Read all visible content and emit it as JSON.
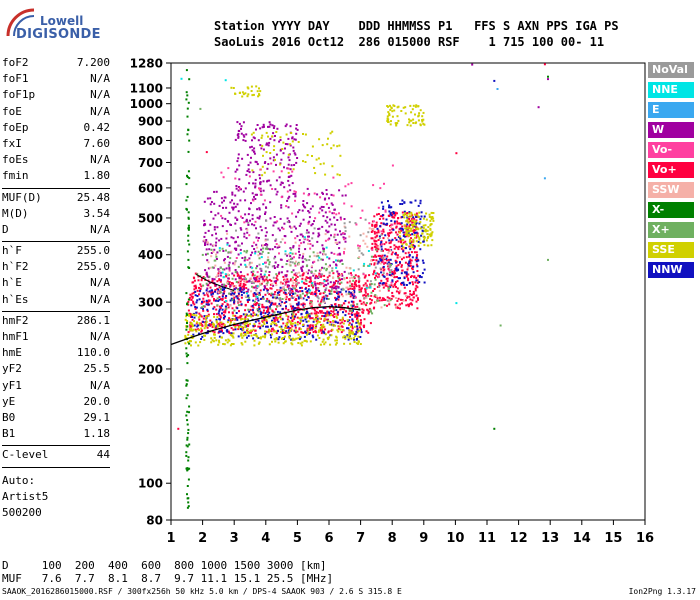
{
  "logo": {
    "line1": "Lowell",
    "line2": "DIGISONDE"
  },
  "header": {
    "row1": "Station YYYY DAY    DDD HHMMSS P1   FFS S AXN PPS IGA PS",
    "row2": "SaoLuis 2016 Oct12  286 015000 RSF    1 715 100 00- 11"
  },
  "params": [
    {
      "name": "foF2",
      "value": "7.200"
    },
    {
      "name": "foF1",
      "value": "N/A"
    },
    {
      "name": "foF1p",
      "value": "N/A"
    },
    {
      "name": "foE",
      "value": "N/A"
    },
    {
      "name": "foEp",
      "value": "0.42"
    },
    {
      "name": "fxI",
      "value": "7.60"
    },
    {
      "name": "foEs",
      "value": "N/A"
    },
    {
      "name": "fmin",
      "value": "1.80"
    },
    {
      "sep": true
    },
    {
      "name": "MUF(D)",
      "value": "25.48"
    },
    {
      "name": "M(D)",
      "value": "3.54"
    },
    {
      "name": "D",
      "value": "N/A"
    },
    {
      "sep": true
    },
    {
      "name": "h`F",
      "value": "255.0"
    },
    {
      "name": "h`F2",
      "value": "255.0"
    },
    {
      "name": "h`E",
      "value": "N/A"
    },
    {
      "name": "h`Es",
      "value": "N/A"
    },
    {
      "sep": true
    },
    {
      "name": "hmF2",
      "value": "286.1"
    },
    {
      "name": "hmF1",
      "value": "N/A"
    },
    {
      "name": "hmE",
      "value": "110.0"
    },
    {
      "name": "yF2",
      "value": "25.5"
    },
    {
      "name": "yF1",
      "value": "N/A"
    },
    {
      "name": "yE",
      "value": "20.0"
    },
    {
      "name": "B0",
      "value": "29.1"
    },
    {
      "name": "B1",
      "value": "1.18"
    },
    {
      "sep": true
    },
    {
      "name": "C-level",
      "value": "44"
    },
    {
      "sep": true
    }
  ],
  "auto_lines": [
    "Auto:",
    "Artist5",
    "500200"
  ],
  "legend": [
    {
      "label": "NoVal",
      "color": "#9a9a9a"
    },
    {
      "label": "NNE",
      "color": "#00e5e5"
    },
    {
      "label": "E",
      "color": "#3aa8f0"
    },
    {
      "label": "W",
      "color": "#a000a0"
    },
    {
      "label": "Vo-",
      "color": "#ff40a0"
    },
    {
      "label": "Vo+",
      "color": "#ff0040"
    },
    {
      "label": "SSW",
      "color": "#f5b0a8"
    },
    {
      "label": "X-",
      "color": "#008000"
    },
    {
      "label": "X+",
      "color": "#6fb060"
    },
    {
      "label": "SSE",
      "color": "#d0d000"
    },
    {
      "label": "NNW",
      "color": "#1010c0"
    }
  ],
  "footer": {
    "d_row": "D     100  200  400  600  800 1000 1500 3000 [km]",
    "muf_row": "MUF   7.6  7.7  8.1  8.7  9.7 11.1 15.1 25.5 [MHz]",
    "file_info": "SAAOK_2016286015000.RSF / 300fx256h 50 kHz 5.0 km / DPS-4 SAAOK 903 / 2.6 S 315.8 E",
    "version": "Ion2Png 1.3.17"
  },
  "chart_data": {
    "type": "scatter",
    "title": "",
    "xlabel": "",
    "ylabel": "",
    "xlim": [
      1,
      16
    ],
    "ylim_log": [
      80,
      1280
    ],
    "x_ticks": [
      1,
      2,
      3,
      4,
      5,
      6,
      7,
      8,
      9,
      10,
      11,
      12,
      13,
      14,
      15,
      16
    ],
    "y_ticks": [
      80,
      100,
      200,
      300,
      400,
      500,
      600,
      700,
      800,
      900,
      1000,
      1100,
      1280
    ],
    "grid": false,
    "legend_position": "right",
    "trace_curve": {
      "name": "profile",
      "points": [
        [
          1.0,
          232
        ],
        [
          1.5,
          240
        ],
        [
          2.0,
          248
        ],
        [
          2.5,
          255
        ],
        [
          3.0,
          262
        ],
        [
          3.5,
          268
        ],
        [
          4.0,
          274
        ],
        [
          4.5,
          280
        ],
        [
          5.0,
          286
        ],
        [
          5.5,
          290
        ],
        [
          6.0,
          292
        ],
        [
          6.5,
          290
        ],
        [
          7.0,
          286
        ]
      ]
    },
    "trace_upper": {
      "points": [
        [
          1.8,
          355
        ],
        [
          2.2,
          340
        ],
        [
          2.6,
          330
        ],
        [
          3.0,
          322
        ]
      ]
    },
    "clusters": [
      {
        "series": "Vo+",
        "color": "#ff0040",
        "xr": [
          1.5,
          7.3
        ],
        "yr": [
          250,
          360
        ],
        "n": 900
      },
      {
        "series": "Vo+",
        "color": "#ff0040",
        "xr": [
          7.3,
          8.8
        ],
        "yr": [
          290,
          520
        ],
        "n": 400
      },
      {
        "series": "NNW",
        "color": "#1010c0",
        "xr": [
          1.6,
          7.0
        ],
        "yr": [
          240,
          330
        ],
        "n": 350
      },
      {
        "series": "NNW",
        "color": "#1010c0",
        "xr": [
          7.5,
          9.0
        ],
        "yr": [
          330,
          560
        ],
        "n": 160
      },
      {
        "series": "W",
        "color": "#a000a0",
        "xr": [
          2.0,
          6.5
        ],
        "yr": [
          320,
          600
        ],
        "n": 500
      },
      {
        "series": "W",
        "color": "#a000a0",
        "xr": [
          3.0,
          5.0
        ],
        "yr": [
          600,
          900
        ],
        "n": 160
      },
      {
        "series": "SSE",
        "color": "#d0d000",
        "xr": [
          1.4,
          7.0
        ],
        "yr": [
          232,
          280
        ],
        "n": 350
      },
      {
        "series": "SSE",
        "color": "#d0d000",
        "xr": [
          8.2,
          9.3
        ],
        "yr": [
          420,
          520
        ],
        "n": 120
      },
      {
        "series": "SSE",
        "color": "#d0d000",
        "xr": [
          7.8,
          9.0
        ],
        "yr": [
          880,
          1000
        ],
        "n": 70
      },
      {
        "series": "SSE",
        "color": "#d0d000",
        "xr": [
          2.8,
          3.8
        ],
        "yr": [
          1050,
          1120
        ],
        "n": 25
      },
      {
        "series": "SSE",
        "color": "#d0d000",
        "xr": [
          3.5,
          6.5
        ],
        "yr": [
          650,
          850
        ],
        "n": 60
      },
      {
        "series": "X+",
        "color": "#6fb060",
        "xr": [
          1.8,
          8.0
        ],
        "yr": [
          280,
          420
        ],
        "n": 180
      },
      {
        "series": "X-",
        "color": "#008000",
        "xr": [
          1.45,
          1.55
        ],
        "yr": [
          85,
          1270
        ],
        "n": 90
      },
      {
        "series": "SSW",
        "color": "#f5b0a8",
        "xr": [
          2.0,
          8.5
        ],
        "yr": [
          290,
          480
        ],
        "n": 160
      },
      {
        "series": "NoVal",
        "color": "#9a9a9a",
        "xr": [
          3.0,
          8.0
        ],
        "yr": [
          300,
          500
        ],
        "n": 100
      },
      {
        "series": "Vo-",
        "color": "#ff40a0",
        "xr": [
          2.5,
          8.0
        ],
        "yr": [
          300,
          700
        ],
        "n": 120
      },
      {
        "series": "NNE",
        "color": "#00e5e5",
        "xr": [
          2.5,
          7.5
        ],
        "yr": [
          300,
          450
        ],
        "n": 35
      }
    ],
    "isolated_points": [
      {
        "x": 1.3,
        "y": 1170,
        "color": "#00e5e5"
      },
      {
        "x": 2.7,
        "y": 1160,
        "color": "#00e5e5"
      },
      {
        "x": 10.5,
        "y": 1275,
        "color": "#a000a0"
      },
      {
        "x": 12.8,
        "y": 1278,
        "color": "#ff0040"
      },
      {
        "x": 11.2,
        "y": 1155,
        "color": "#1010c0"
      },
      {
        "x": 12.9,
        "y": 1185,
        "color": "#008000"
      },
      {
        "x": 12.9,
        "y": 1168,
        "color": "#a000a0"
      },
      {
        "x": 11.3,
        "y": 1100,
        "color": "#3aa8f0"
      },
      {
        "x": 12.6,
        "y": 985,
        "color": "#a000a0"
      },
      {
        "x": 10.0,
        "y": 745,
        "color": "#ff0040"
      },
      {
        "x": 12.8,
        "y": 640,
        "color": "#3aa8f0"
      },
      {
        "x": 12.9,
        "y": 390,
        "color": "#6fb060"
      },
      {
        "x": 10.0,
        "y": 300,
        "color": "#00e5e5"
      },
      {
        "x": 11.4,
        "y": 262,
        "color": "#6fb060"
      },
      {
        "x": 11.2,
        "y": 140,
        "color": "#008000"
      },
      {
        "x": 1.2,
        "y": 140,
        "color": "#ff0040"
      },
      {
        "x": 1.9,
        "y": 975,
        "color": "#6fb060"
      },
      {
        "x": 2.1,
        "y": 750,
        "color": "#ff0040"
      }
    ]
  }
}
